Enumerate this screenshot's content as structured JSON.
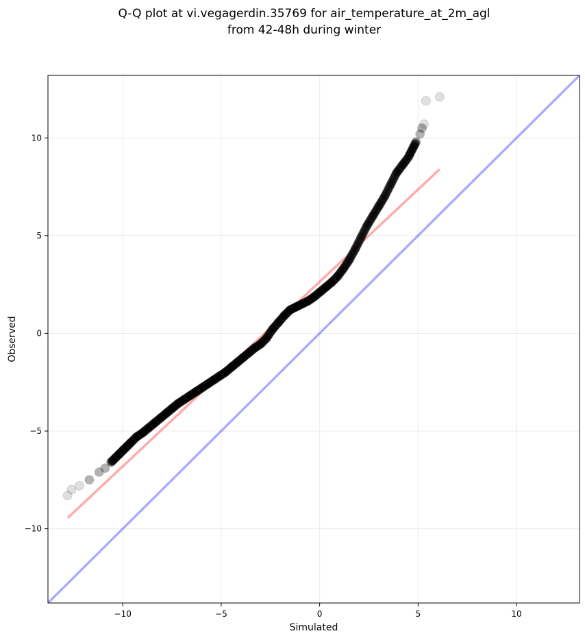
{
  "chart_data": {
    "type": "scatter",
    "title": "Q-Q plot at vi.vegagerdin.35769 for air_temperature_at_2m_agl",
    "subtitle": "from 42-48h during winter",
    "xlabel": "Simulated",
    "ylabel": "Observed",
    "xlim": [
      -13.8,
      13.2
    ],
    "ylim": [
      -13.8,
      13.2
    ],
    "xticks": [
      -10,
      -5,
      0,
      5,
      10
    ],
    "yticks": [
      -10,
      -5,
      0,
      5,
      10
    ],
    "xtick_labels": [
      "−10",
      "−5",
      "0",
      "5",
      "10"
    ],
    "ytick_labels": [
      "−10",
      "−5",
      "0",
      "5",
      "10"
    ],
    "grid": true,
    "colors": {
      "points": "#000000",
      "fit_line": "#ff0000",
      "identity_line": "#0000ff",
      "grid": "#dddddd"
    },
    "fit_line": {
      "x": [
        -12.8,
        6.1
      ],
      "y": [
        -9.45,
        8.4
      ]
    },
    "identity_line": {
      "x": [
        -13.8,
        13.2
      ],
      "y": [
        -13.8,
        13.2
      ]
    },
    "points": {
      "x": [
        -12.8,
        -12.6,
        -12.2,
        -11.7,
        -11.2,
        -10.9,
        -10.6,
        -10.4,
        -10.2,
        -10.0,
        -9.8,
        -9.6,
        -9.3,
        -9.0,
        -8.7,
        -8.4,
        -8.1,
        -7.8,
        -7.5,
        -7.2,
        -6.9,
        -6.6,
        -6.3,
        -6.0,
        -5.7,
        -5.4,
        -5.1,
        -4.8,
        -4.5,
        -4.2,
        -3.9,
        -3.6,
        -3.3,
        -3.0,
        -2.7,
        -2.4,
        -2.1,
        -1.8,
        -1.5,
        -1.2,
        -0.9,
        -0.6,
        -0.3,
        0.0,
        0.3,
        0.6,
        0.9,
        1.2,
        1.5,
        1.8,
        2.1,
        2.4,
        2.7,
        3.0,
        3.3,
        3.6,
        3.9,
        4.2,
        4.5,
        4.7,
        4.9,
        5.1,
        5.2,
        5.3,
        5.4,
        6.1
      ],
      "y": [
        -8.3,
        -8.0,
        -7.8,
        -7.5,
        -7.1,
        -6.9,
        -6.6,
        -6.4,
        -6.2,
        -6.0,
        -5.8,
        -5.6,
        -5.3,
        -5.1,
        -4.85,
        -4.6,
        -4.35,
        -4.1,
        -3.85,
        -3.6,
        -3.4,
        -3.2,
        -3.0,
        -2.8,
        -2.6,
        -2.4,
        -2.2,
        -2.0,
        -1.75,
        -1.5,
        -1.25,
        -1.0,
        -0.75,
        -0.55,
        -0.25,
        0.2,
        0.55,
        0.9,
        1.2,
        1.35,
        1.5,
        1.65,
        1.85,
        2.1,
        2.35,
        2.6,
        2.9,
        3.3,
        3.75,
        4.3,
        4.9,
        5.5,
        6.0,
        6.5,
        7.0,
        7.6,
        8.2,
        8.6,
        9.0,
        9.4,
        9.8,
        10.2,
        10.5,
        10.7,
        11.9,
        12.1
      ]
    }
  }
}
